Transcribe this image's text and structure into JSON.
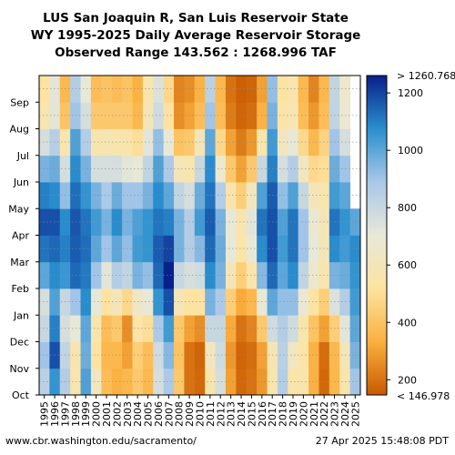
{
  "header": {
    "title_line1": "LUS San Joaquin R, San Luis Reservoir State",
    "title_line2": "WY 1995-2025 Daily Average Reservoir Storage",
    "title_line3": "Observed Range 143.562 : 1268.996 TAF"
  },
  "footer": {
    "source": "www.cbr.washington.edu/sacramento/",
    "timestamp": "27 Apr 2025 15:48:08 PDT"
  },
  "colorbar": {
    "top_label": "> 1260.768",
    "bottom_label": "< 146.978",
    "ticks": [
      200,
      400,
      600,
      800,
      1000,
      1200
    ],
    "min": 146.978,
    "max": 1260.768,
    "colors": [
      "#c85a00",
      "#fbb040",
      "#fde3a0",
      "#e8e8d8",
      "#a9c8e8",
      "#2a8fce",
      "#08208a"
    ]
  },
  "chart_data": {
    "type": "heatmap",
    "title": "LUS San Joaquin R, San Luis Reservoir State",
    "subtitle": "WY 1995-2025 Daily Average Reservoir Storage",
    "x": [
      "1995",
      "1996",
      "1997",
      "1998",
      "1999",
      "2000",
      "2001",
      "2002",
      "2003",
      "2004",
      "2005",
      "2006",
      "2007",
      "2008",
      "2009",
      "2010",
      "2011",
      "2012",
      "2013",
      "2014",
      "2015",
      "2016",
      "2017",
      "2018",
      "2019",
      "2020",
      "2021",
      "2022",
      "2023",
      "2024",
      "2025"
    ],
    "y": [
      "Oct",
      "Nov",
      "Dec",
      "Jan",
      "Feb",
      "Mar",
      "Apr",
      "May",
      "Jun",
      "Jul",
      "Aug",
      "Sep"
    ],
    "units": "TAF",
    "values": [
      [
        840,
        900,
        800,
        760,
        1000,
        1120,
        1180,
        1100,
        960,
        760,
        560,
        520
      ],
      [
        1060,
        1180,
        1100,
        1020,
        1080,
        1140,
        1180,
        1080,
        980,
        850,
        720,
        720
      ],
      [
        860,
        820,
        760,
        800,
        1050,
        1100,
        1080,
        920,
        760,
        560,
        400,
        360
      ],
      [
        560,
        560,
        700,
        900,
        1140,
        1160,
        1170,
        1130,
        1080,
        1020,
        900,
        860
      ],
      [
        1020,
        980,
        1000,
        1080,
        1110,
        1130,
        1120,
        1060,
        960,
        860,
        760,
        700
      ],
      [
        620,
        520,
        560,
        700,
        900,
        1000,
        1040,
        960,
        760,
        560,
        420,
        380
      ],
      [
        380,
        360,
        380,
        520,
        720,
        900,
        960,
        880,
        760,
        580,
        420,
        400
      ],
      [
        340,
        360,
        420,
        600,
        860,
        1000,
        1080,
        980,
        760,
        560,
        420,
        380
      ],
      [
        360,
        300,
        260,
        480,
        820,
        920,
        960,
        900,
        720,
        560,
        420,
        400
      ],
      [
        420,
        440,
        540,
        640,
        960,
        1040,
        1020,
        900,
        700,
        500,
        360,
        340
      ],
      [
        360,
        380,
        500,
        700,
        920,
        1060,
        1060,
        960,
        820,
        720,
        600,
        560
      ],
      [
        760,
        780,
        880,
        1060,
        1140,
        1160,
        1120,
        1080,
        1020,
        920,
        780,
        740
      ],
      [
        880,
        940,
        1040,
        1180,
        1268,
        1200,
        1100,
        1000,
        880,
        700,
        520,
        480
      ],
      [
        420,
        400,
        420,
        600,
        800,
        960,
        960,
        820,
        600,
        400,
        260,
        240
      ],
      [
        200,
        200,
        300,
        520,
        760,
        860,
        860,
        760,
        560,
        420,
        300,
        260
      ],
      [
        180,
        170,
        260,
        520,
        780,
        940,
        1040,
        980,
        800,
        600,
        380,
        340
      ],
      [
        560,
        620,
        800,
        960,
        1080,
        1140,
        1160,
        1120,
        1080,
        1000,
        900,
        840
      ],
      [
        760,
        780,
        800,
        880,
        960,
        980,
        960,
        860,
        660,
        480,
        380,
        360
      ],
      [
        300,
        280,
        320,
        440,
        600,
        700,
        700,
        560,
        420,
        300,
        220,
        200
      ],
      [
        180,
        170,
        200,
        320,
        440,
        540,
        560,
        440,
        300,
        220,
        170,
        160
      ],
      [
        200,
        190,
        240,
        360,
        560,
        700,
        720,
        620,
        420,
        280,
        190,
        170
      ],
      [
        280,
        300,
        420,
        700,
        940,
        1080,
        1120,
        1020,
        800,
        560,
        340,
        300
      ],
      [
        560,
        580,
        780,
        1000,
        1140,
        1180,
        1180,
        1160,
        1100,
        1040,
        960,
        920
      ],
      [
        860,
        840,
        860,
        920,
        1000,
        1040,
        1020,
        920,
        760,
        620,
        540,
        520
      ],
      [
        540,
        620,
        780,
        920,
        1080,
        1120,
        1120,
        1020,
        860,
        700,
        580,
        560
      ],
      [
        560,
        540,
        560,
        680,
        820,
        900,
        900,
        800,
        620,
        480,
        380,
        360
      ],
      [
        340,
        340,
        400,
        520,
        660,
        700,
        680,
        600,
        480,
        360,
        280,
        240
      ],
      [
        180,
        190,
        300,
        440,
        560,
        600,
        600,
        560,
        500,
        460,
        380,
        360
      ],
      [
        360,
        360,
        440,
        740,
        960,
        1080,
        1120,
        1040,
        980,
        900,
        820,
        820
      ],
      [
        560,
        600,
        720,
        860,
        980,
        1040,
        1060,
        1000,
        900,
        760,
        680,
        660
      ],
      [
        900,
        960,
        1000,
        1040,
        1060,
        1080,
        1000,
        null,
        null,
        null,
        null,
        null
      ]
    ]
  }
}
